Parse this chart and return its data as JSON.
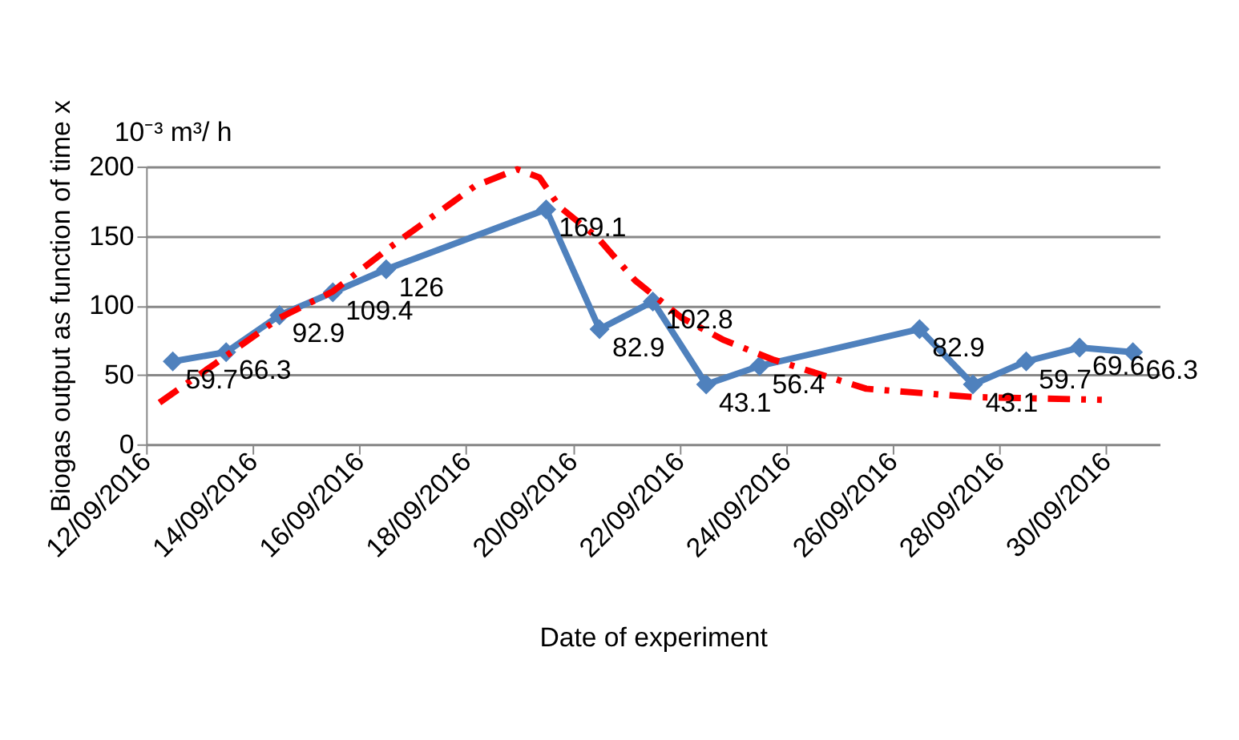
{
  "chart_data": {
    "type": "line",
    "xlabel": "Date of experiment",
    "ylabel": "Biogas output as function of time x",
    "annotations": [
      "10⁻³  m³/ h"
    ],
    "xlim": [
      "2016-09-12",
      "2016-10-01"
    ],
    "xticks": [
      {
        "value": "2016-09-12",
        "label": "12/09/2016"
      },
      {
        "value": "2016-09-14",
        "label": "14/09/2016"
      },
      {
        "value": "2016-09-16",
        "label": "16/09/2016"
      },
      {
        "value": "2016-09-18",
        "label": "18/09/2016"
      },
      {
        "value": "2016-09-20",
        "label": "20/09/2016"
      },
      {
        "value": "2016-09-22",
        "label": "22/09/2016"
      },
      {
        "value": "2016-09-24",
        "label": "24/09/2016"
      },
      {
        "value": "2016-09-26",
        "label": "26/09/2016"
      },
      {
        "value": "2016-09-28",
        "label": "28/09/2016"
      },
      {
        "value": "2016-09-30",
        "label": "30/09/2016"
      }
    ],
    "ylim": [
      0,
      200
    ],
    "yticks": [
      0,
      50,
      100,
      150,
      200
    ],
    "grid": "y",
    "series": [
      {
        "color": "#4f81bd",
        "marker": "diamond",
        "line_style": "solid",
        "data_labels": true,
        "x": [
          "2016-09-12T12:00",
          "2016-09-13T12:00",
          "2016-09-14T12:00",
          "2016-09-15T12:00",
          "2016-09-16T12:00",
          "2016-09-19T12:00",
          "2016-09-20T12:00",
          "2016-09-21T12:00",
          "2016-09-22T12:00",
          "2016-09-23T12:00",
          "2016-09-26T12:00",
          "2016-09-27T12:00",
          "2016-09-28T12:00",
          "2016-09-29T12:00",
          "2016-09-30T12:00"
        ],
        "values": [
          59.7,
          66.3,
          92.9,
          109.4,
          126,
          169.1,
          82.9,
          102.8,
          43.1,
          56.4,
          82.9,
          43.1,
          59.7,
          69.6,
          66.3
        ]
      },
      {
        "color": "#ff0000",
        "marker": "none",
        "line_style": "dashed",
        "x": [
          "2016-09-12T06:00",
          "2016-09-13T07:00",
          "2016-09-14T12:00",
          "2016-09-15T12:00",
          "2016-09-16T13:00",
          "2016-09-18T04:00",
          "2016-09-18T23:00",
          "2016-09-19T09:00",
          "2016-09-19T18:00",
          "2016-09-20T11:00",
          "2016-09-21T04:00",
          "2016-09-22T01:00",
          "2016-09-22T20:00",
          "2016-09-23T18:00",
          "2016-09-25T12:00",
          "2016-09-27T12:00",
          "2016-09-29T22:00"
        ],
        "values": [
          30,
          58,
          91,
          110,
          141,
          186,
          198,
          192,
          171,
          149,
          118,
          91,
          75,
          61,
          40,
          34,
          32
        ]
      }
    ]
  }
}
